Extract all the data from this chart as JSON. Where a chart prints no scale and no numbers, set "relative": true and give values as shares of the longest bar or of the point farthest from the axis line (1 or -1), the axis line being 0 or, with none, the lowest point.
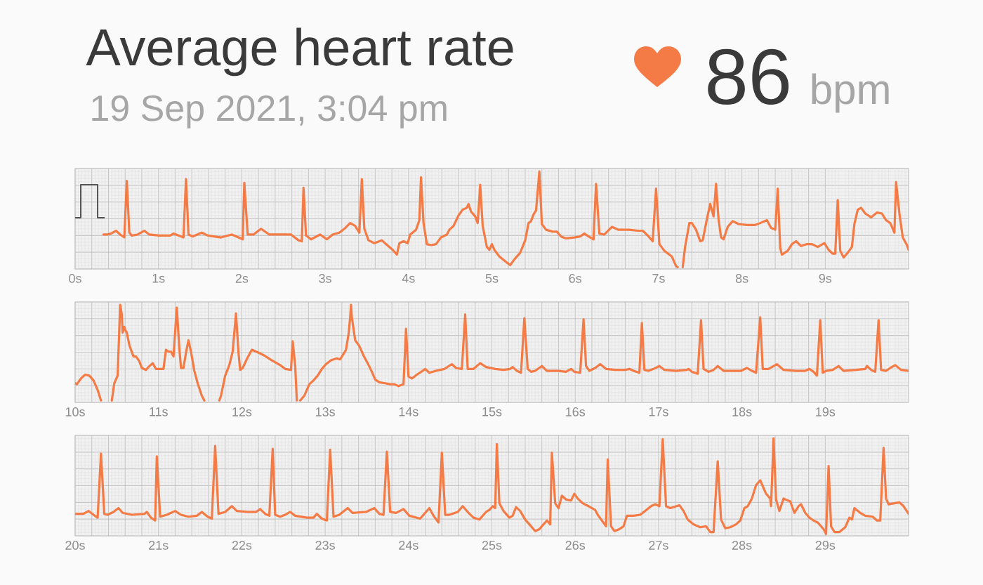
{
  "chart_data": [
    {
      "type": "line",
      "title": "Average heart rate",
      "subtitle": "19 Sep 2021, 3:04 pm",
      "annotations": [
        "86",
        "bpm"
      ],
      "relative": true,
      "color": "#f47b45",
      "grid": true,
      "xlim": [
        0,
        10
      ],
      "xticks": [
        {
          "value": 0,
          "label": "0s"
        },
        {
          "value": 1,
          "label": "1s"
        },
        {
          "value": 2,
          "label": "2s"
        },
        {
          "value": 3,
          "label": "3s"
        },
        {
          "value": 4,
          "label": "4s"
        },
        {
          "value": 5,
          "label": "5s"
        },
        {
          "value": 6,
          "label": "6s"
        },
        {
          "value": 7,
          "label": "7s"
        },
        {
          "value": 8,
          "label": "8s"
        },
        {
          "value": 9,
          "label": "9s"
        }
      ],
      "x": [
        0.34,
        0.38,
        0.43,
        0.49,
        0.54,
        0.59,
        0.62,
        0.65,
        0.68,
        0.75,
        0.83,
        0.89,
        1.01,
        1.14,
        1.18,
        1.27,
        1.3,
        1.33,
        1.36,
        1.41,
        1.52,
        1.59,
        1.75,
        1.88,
        1.96,
        2.01,
        2.03,
        2.07,
        2.14,
        2.23,
        2.33,
        2.49,
        2.59,
        2.68,
        2.72,
        2.74,
        2.77,
        2.83,
        2.94,
        3.02,
        3.09,
        3.17,
        3.23,
        3.3,
        3.36,
        3.41,
        3.44,
        3.47,
        3.52,
        3.59,
        3.68,
        3.73,
        3.81,
        3.86,
        3.89,
        3.94,
        3.99,
        4.02,
        4.09,
        4.13,
        4.15,
        4.18,
        4.22,
        4.27,
        4.33,
        4.39,
        4.46,
        4.49,
        4.54,
        4.6,
        4.65,
        4.7,
        4.72,
        4.75,
        4.8,
        4.83,
        4.86,
        4.89,
        4.94,
        4.97,
        5.0,
        5.03,
        5.09,
        5.16,
        5.22,
        5.27,
        5.34,
        5.4,
        5.44,
        5.47,
        5.5,
        5.53,
        5.57,
        5.6,
        5.65,
        5.73,
        5.78,
        5.83,
        5.89,
        5.99,
        6.06,
        6.11,
        6.16,
        6.22,
        6.25,
        6.29,
        6.35,
        6.44,
        6.52,
        6.65,
        6.75,
        6.81,
        6.88,
        6.93,
        6.97,
        7.01,
        7.07,
        7.16,
        7.21,
        7.23,
        7.26,
        7.29,
        7.32,
        7.37,
        7.4,
        7.45,
        7.5,
        7.53,
        7.58,
        7.62,
        7.66,
        7.69,
        7.72,
        7.75,
        7.78,
        7.83,
        7.89,
        7.96,
        8.06,
        8.16,
        8.22,
        8.3,
        8.35,
        8.4,
        8.43,
        8.46,
        8.48,
        8.55,
        8.6,
        8.65,
        8.71,
        8.78,
        8.84,
        8.91,
        8.99,
        9.04,
        9.09,
        9.12,
        9.15,
        9.18,
        9.22,
        9.27,
        9.32,
        9.35,
        9.39,
        9.43,
        9.48,
        9.55,
        9.62,
        9.68,
        9.73,
        9.78,
        9.83,
        9.85,
        9.89,
        9.93,
        9.98,
        10.0
      ],
      "values": [
        0.34,
        0.34,
        0.35,
        0.38,
        0.34,
        0.31,
        0.9,
        0.36,
        0.33,
        0.34,
        0.38,
        0.34,
        0.33,
        0.33,
        0.35,
        0.32,
        0.31,
        0.92,
        0.34,
        0.32,
        0.36,
        0.33,
        0.31,
        0.34,
        0.31,
        0.29,
        0.88,
        0.34,
        0.34,
        0.4,
        0.34,
        0.34,
        0.34,
        0.28,
        0.27,
        0.83,
        0.33,
        0.29,
        0.34,
        0.29,
        0.34,
        0.36,
        0.4,
        0.46,
        0.43,
        0.36,
        0.92,
        0.4,
        0.28,
        0.25,
        0.28,
        0.24,
        0.18,
        0.13,
        0.25,
        0.27,
        0.25,
        0.34,
        0.39,
        0.49,
        0.94,
        0.46,
        0.24,
        0.23,
        0.24,
        0.31,
        0.34,
        0.39,
        0.43,
        0.54,
        0.6,
        0.62,
        0.66,
        0.58,
        0.53,
        0.46,
        0.86,
        0.43,
        0.21,
        0.18,
        0.24,
        0.18,
        0.11,
        0.06,
        0.02,
        0.08,
        0.15,
        0.28,
        0.46,
        0.48,
        0.55,
        0.59,
        1,
        0.45,
        0.39,
        0.37,
        0.37,
        0.32,
        0.3,
        0.31,
        0.32,
        0.35,
        0.32,
        0.29,
        0.87,
        0.35,
        0.34,
        0.42,
        0.39,
        0.39,
        0.38,
        0.38,
        0.32,
        0.27,
        0.82,
        0.24,
        0.17,
        0.11,
        0.01,
        0,
        null,
        0,
        0.22,
        0.46,
        0.46,
        0.39,
        0.27,
        0.28,
        0.5,
        0.66,
        0.53,
        0.87,
        0.5,
        0.31,
        0.29,
        0.42,
        0.48,
        0.45,
        0.44,
        0.44,
        0.46,
        0.49,
        0.41,
        0.39,
        0.82,
        0.2,
        0.13,
        0.17,
        0.24,
        0.27,
        0.22,
        0.24,
        0.24,
        0.21,
        0.25,
        0.18,
        0.14,
        0.14,
        0.7,
        0.17,
        0.1,
        0.15,
        0.21,
        0.45,
        0.6,
        0.62,
        0.56,
        0.52,
        0.57,
        0.56,
        0.49,
        0.46,
        0.36,
        0.89,
        0.56,
        0.31,
        0.23,
        0.18
      ]
    },
    {
      "type": "line",
      "relative": true,
      "color": "#f47b45",
      "grid": true,
      "xlim": [
        10,
        20
      ],
      "xticks": [
        {
          "value": 10,
          "label": "10s"
        },
        {
          "value": 11,
          "label": "11s"
        },
        {
          "value": 12,
          "label": "12s"
        },
        {
          "value": 13,
          "label": "13s"
        },
        {
          "value": 14,
          "label": "14s"
        },
        {
          "value": 15,
          "label": "15s"
        },
        {
          "value": 16,
          "label": "16s"
        },
        {
          "value": 17,
          "label": "17s"
        },
        {
          "value": 18,
          "label": "18s"
        },
        {
          "value": 19,
          "label": "19s"
        }
      ],
      "x": [
        10.0,
        10.02,
        10.07,
        10.12,
        10.17,
        10.22,
        10.27,
        10.31,
        10.38,
        10.44,
        10.47,
        10.51,
        10.52,
        10.54,
        10.56,
        10.57,
        10.59,
        10.6,
        10.62,
        10.65,
        10.7,
        10.73,
        10.77,
        10.8,
        10.85,
        10.88,
        10.93,
        10.97,
        11.02,
        11.06,
        11.09,
        11.12,
        11.15,
        11.18,
        11.22,
        11.25,
        11.27,
        11.3,
        11.33,
        11.36,
        11.39,
        11.43,
        11.47,
        11.52,
        11.55,
        11.64,
        11.73,
        11.75,
        11.8,
        11.85,
        11.89,
        11.93,
        11.96,
        11.98,
        12.01,
        12.07,
        12.12,
        12.2,
        12.27,
        12.36,
        12.46,
        12.52,
        12.59,
        12.61,
        12.64,
        12.66,
        12.68,
        12.7,
        12.75,
        12.81,
        12.86,
        12.91,
        12.96,
        13.01,
        13.07,
        13.14,
        13.18,
        13.25,
        13.28,
        13.3,
        13.31,
        13.32,
        13.35,
        13.36,
        13.41,
        13.46,
        13.51,
        13.56,
        13.6,
        13.65,
        13.72,
        13.78,
        13.83,
        13.88,
        13.94,
        13.97,
        14.0,
        14.04,
        14.1,
        14.17,
        14.2,
        14.25,
        14.33,
        14.43,
        14.52,
        14.57,
        14.64,
        14.68,
        14.71,
        14.78,
        14.86,
        14.93,
        15.04,
        15.14,
        15.22,
        15.25,
        15.3,
        15.35,
        15.39,
        15.43,
        15.47,
        15.52,
        15.6,
        15.66,
        15.8,
        15.89,
        15.95,
        15.99,
        16.06,
        16.1,
        16.13,
        16.17,
        16.24,
        16.3,
        16.37,
        16.48,
        16.6,
        16.65,
        16.7,
        16.77,
        16.8,
        16.83,
        16.88,
        16.94,
        17.01,
        17.07,
        17.21,
        17.34,
        17.36,
        17.4,
        17.47,
        17.51,
        17.54,
        17.6,
        17.66,
        17.71,
        17.78,
        17.99,
        18.06,
        18.12,
        18.17,
        18.22,
        18.25,
        18.32,
        18.42,
        18.5,
        18.65,
        18.76,
        18.81,
        18.86,
        18.9,
        18.94,
        18.97,
        19.01,
        19.09,
        19.16,
        19.22,
        19.37,
        19.48,
        19.5,
        19.55,
        19.6,
        19.64,
        19.67,
        19.73,
        19.78,
        19.84,
        19.91,
        20.0
      ],
      "values": [
        0.18,
        0.17,
        0.23,
        0.27,
        0.26,
        0.21,
        0.11,
        0,
        null,
        0,
        0.18,
        0.26,
        0.5,
        1,
        0.9,
        0.71,
        0.77,
        0.74,
        0.71,
        0.58,
        0.46,
        0.46,
        0.41,
        0.34,
        0.32,
        0.35,
        0.39,
        0.33,
        0.33,
        0.33,
        0.53,
        0.51,
        0.51,
        0.46,
        0.97,
        0.55,
        0.34,
        0.34,
        0.5,
        0.63,
        0.51,
        0.31,
        0.18,
        0.05,
        0,
        null,
        0,
        0.05,
        0.26,
        0.37,
        0.51,
        0.91,
        0.5,
        0.32,
        0.34,
        0.45,
        0.53,
        0.5,
        0.47,
        0.42,
        0.37,
        0.33,
        0.32,
        0.62,
        0.37,
        0,
        null,
        0,
        0.05,
        0.17,
        0.21,
        0.26,
        0.33,
        0.38,
        0.42,
        0.44,
        0.43,
        0.53,
        0.69,
        0.87,
        1,
        0.87,
        0.69,
        0.63,
        0.57,
        0.47,
        0.39,
        0.3,
        0.22,
        0.19,
        0.18,
        0.17,
        0.17,
        0.15,
        0.17,
        0.75,
        0.25,
        0.23,
        0.27,
        0.31,
        0.33,
        0.29,
        0.31,
        0.33,
        0.38,
        0.34,
        0.33,
        0.9,
        0.33,
        0.33,
        0.39,
        0.35,
        0.33,
        0.32,
        0.33,
        0.35,
        0.31,
        0.29,
        0.86,
        0.33,
        0.3,
        0.31,
        0.36,
        0.31,
        0.31,
        0.3,
        0.33,
        0.3,
        0.29,
        0.85,
        0.36,
        0.31,
        0.34,
        0.38,
        0.33,
        0.32,
        0.32,
        0.33,
        0.31,
        0.29,
        0.81,
        0.32,
        0.31,
        0.33,
        0.36,
        0.32,
        0.31,
        0.32,
        0.33,
        0.3,
        0.28,
        0.84,
        0.33,
        0.3,
        0.32,
        0.36,
        0.31,
        0.31,
        0.34,
        0.31,
        0.29,
        0.87,
        0.33,
        0.33,
        0.38,
        0.32,
        0.31,
        0.31,
        0.33,
        0.3,
        0.26,
        0.84,
        0.29,
        0.31,
        0.32,
        0.36,
        0.31,
        0.32,
        0.33,
        0.36,
        0.32,
        0.3,
        0.84,
        0.32,
        0.31,
        0.34,
        0.37,
        0.32,
        0.31
      ]
    },
    {
      "type": "line",
      "relative": true,
      "color": "#f47b45",
      "grid": true,
      "xlim": [
        20,
        30
      ],
      "xticks": [
        {
          "value": 20,
          "label": "20s"
        },
        {
          "value": 21,
          "label": "21s"
        },
        {
          "value": 22,
          "label": "22s"
        },
        {
          "value": 23,
          "label": "23s"
        },
        {
          "value": 24,
          "label": "24s"
        },
        {
          "value": 25,
          "label": "25s"
        },
        {
          "value": 26,
          "label": "26s"
        },
        {
          "value": 27,
          "label": "27s"
        },
        {
          "value": 28,
          "label": "28s"
        },
        {
          "value": 29,
          "label": "29s"
        }
      ],
      "x": [
        20.0,
        20.04,
        20.1,
        20.16,
        20.22,
        20.27,
        20.31,
        20.35,
        20.39,
        20.46,
        20.52,
        20.57,
        20.68,
        20.83,
        20.86,
        20.91,
        20.96,
        20.98,
        21.02,
        21.1,
        21.2,
        21.27,
        21.36,
        21.46,
        21.52,
        21.59,
        21.64,
        21.68,
        21.72,
        21.8,
        21.88,
        21.94,
        22.07,
        22.17,
        22.22,
        22.28,
        22.33,
        22.37,
        22.4,
        22.46,
        22.52,
        22.58,
        22.64,
        22.78,
        22.86,
        22.9,
        22.96,
        23.02,
        23.06,
        23.1,
        23.17,
        23.27,
        23.33,
        23.49,
        23.59,
        23.65,
        23.7,
        23.74,
        23.78,
        23.85,
        23.94,
        24.01,
        24.14,
        24.25,
        24.3,
        24.36,
        24.4,
        24.44,
        24.49,
        24.59,
        24.65,
        24.72,
        24.78,
        24.85,
        24.93,
        24.97,
        25.01,
        25.04,
        25.06,
        25.09,
        25.14,
        25.21,
        25.25,
        25.29,
        25.34,
        25.4,
        25.47,
        25.52,
        25.57,
        25.62,
        25.66,
        25.7,
        25.72,
        25.76,
        25.8,
        25.84,
        25.89,
        25.95,
        25.99,
        26.03,
        26.09,
        26.16,
        26.24,
        26.27,
        26.32,
        26.37,
        26.39,
        26.43,
        26.47,
        26.53,
        26.58,
        26.62,
        26.7,
        26.78,
        26.84,
        26.91,
        26.96,
        27.01,
        27.05,
        27.09,
        27.14,
        27.25,
        27.3,
        27.35,
        27.42,
        27.5,
        27.57,
        27.62,
        27.66,
        27.71,
        27.75,
        27.8,
        27.86,
        27.93,
        27.98,
        28.03,
        28.07,
        28.12,
        28.17,
        28.22,
        28.29,
        28.34,
        28.35,
        28.38,
        28.41,
        28.45,
        28.5,
        28.55,
        28.58,
        28.63,
        28.68,
        28.71,
        28.76,
        28.81,
        28.86,
        28.91,
        28.98,
        29.01,
        29.04,
        29.07,
        29.11,
        29.17,
        29.24,
        29.29,
        29.32,
        29.35,
        29.42,
        29.48,
        29.57,
        29.62,
        29.66,
        29.7,
        29.73,
        29.76,
        29.83,
        29.89,
        29.94,
        30.0
      ],
      "values": [
        0.21,
        0.21,
        0.21,
        0.24,
        0.2,
        0.17,
        0.84,
        0.21,
        0.2,
        0.23,
        0.27,
        0.22,
        0.2,
        0.21,
        0.23,
        0.17,
        0.14,
        0.81,
        0.18,
        0.2,
        0.24,
        0.2,
        0.18,
        0.19,
        0.23,
        0.18,
        0.16,
        0.92,
        0.21,
        0.23,
        0.29,
        0.24,
        0.23,
        0.23,
        0.26,
        0.21,
        0.19,
        0.89,
        0.2,
        0.18,
        0.2,
        0.23,
        0.19,
        0.17,
        0.17,
        0.21,
        0.16,
        0.14,
        0.88,
        0.18,
        0.2,
        0.27,
        0.22,
        0.23,
        0.27,
        0.21,
        0.2,
        0.86,
        0.23,
        0.22,
        0.26,
        0.19,
        0.16,
        0.27,
        0.19,
        0.12,
        0.85,
        0.2,
        0.2,
        0.23,
        0.29,
        0.22,
        0.17,
        0.15,
        0.23,
        0.25,
        0.29,
        0.27,
        0.94,
        0.32,
        0.24,
        0.17,
        0.19,
        0.28,
        0.24,
        0.15,
        0.08,
        0.03,
        0.05,
        0.1,
        0.14,
        0.1,
        0.85,
        0.32,
        0.27,
        0.4,
        0.36,
        0.35,
        0.42,
        0.37,
        0.32,
        0.29,
        0.25,
        0.2,
        0.14,
        0.08,
        0.78,
        0.08,
        0.03,
        0.05,
        0.08,
        0.19,
        0.19,
        0.2,
        0.24,
        0.29,
        0.31,
        0.29,
        0.99,
        0.29,
        0.27,
        0.3,
        0.24,
        0.15,
        0.1,
        0.07,
        0.08,
        0.02,
        0.02,
        0.76,
        0.15,
        0.06,
        0.07,
        0.1,
        0.14,
        0.27,
        0.29,
        0.37,
        0.51,
        0.56,
        0.42,
        0.37,
        0.29,
        1,
        0.36,
        0.24,
        0.37,
        0.35,
        0.34,
        0.22,
        0.29,
        0.31,
        0.22,
        0.17,
        0.14,
        0.12,
        0.05,
        0,
        0.71,
        0.08,
        0.02,
        0.02,
        0.07,
        0.17,
        0.15,
        0.27,
        0.22,
        0.19,
        0.18,
        0.14,
        0.14,
        0.9,
        0.37,
        0.31,
        0.32,
        0.33,
        0.29,
        0.21
      ]
    }
  ]
}
